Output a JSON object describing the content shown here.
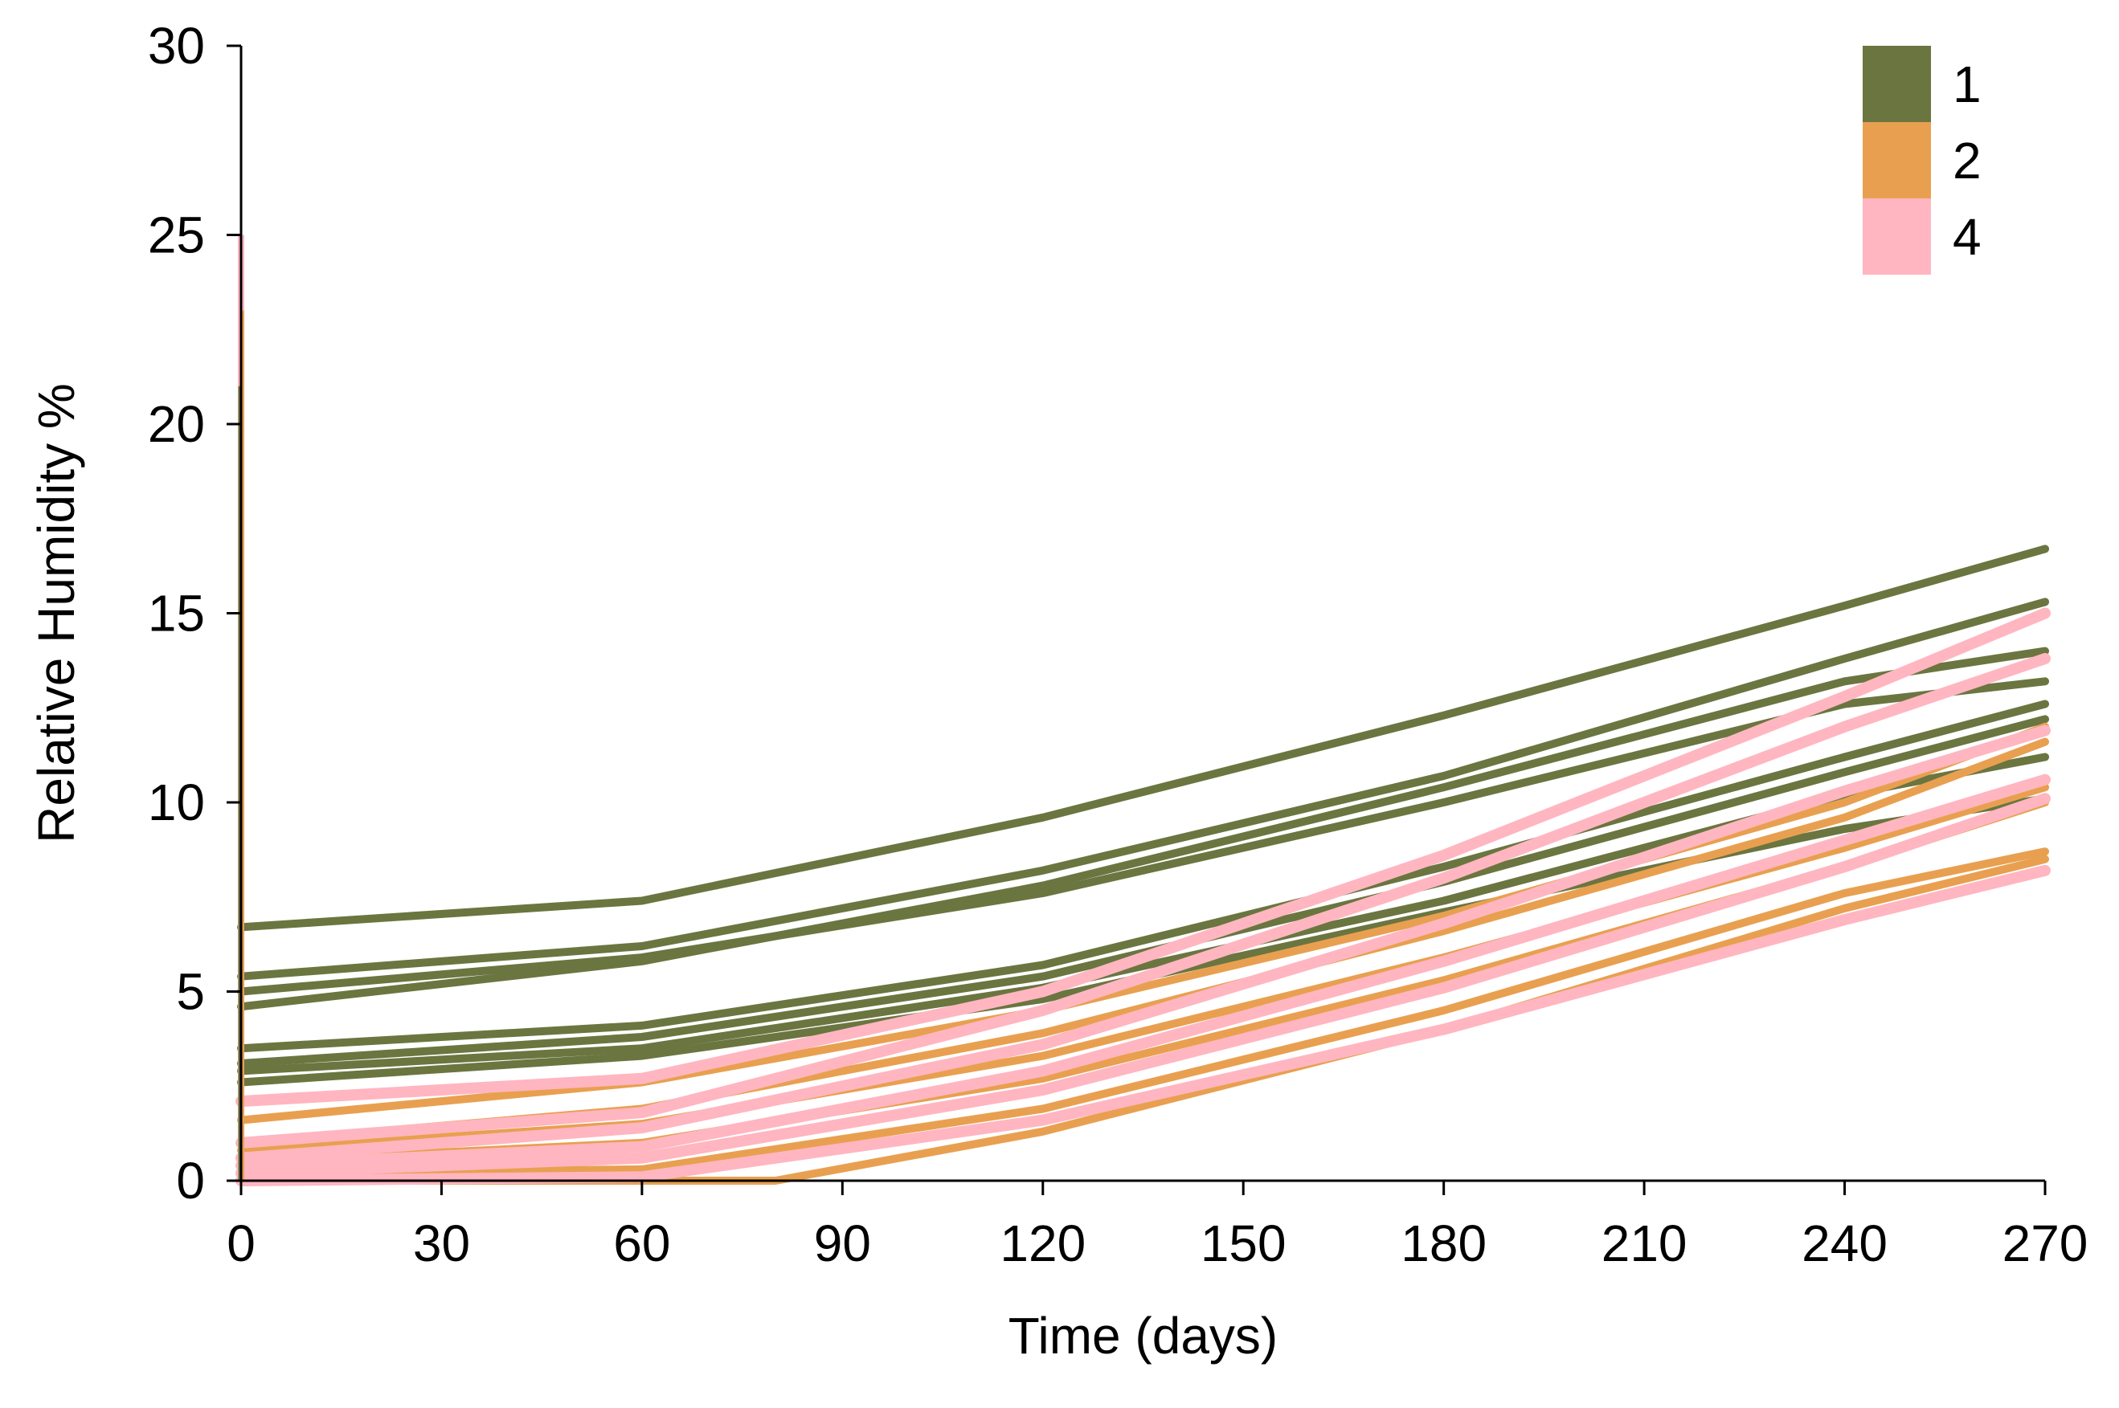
{
  "chart_data": {
    "type": "line",
    "title": "",
    "xlabel": "Time (days)",
    "ylabel": "Relative Humidity %",
    "xlim": [
      0,
      270
    ],
    "ylim": [
      0,
      30
    ],
    "xticks": [
      0,
      30,
      60,
      90,
      120,
      150,
      180,
      210,
      240,
      270
    ],
    "yticks": [
      0,
      5,
      10,
      15,
      20,
      25,
      30
    ],
    "grid": false,
    "legend_position": "top-right",
    "legend": [
      {
        "label": "1",
        "color": "#6b7540"
      },
      {
        "label": "2",
        "color": "#e8a050"
      },
      {
        "label": "4",
        "color": "#ffb6c1"
      }
    ],
    "series": [
      {
        "group": "1",
        "color": "#6b7540",
        "x": [
          0,
          60,
          120,
          180,
          240,
          270
        ],
        "y": [
          6.7,
          7.4,
          9.6,
          12.3,
          15.2,
          16.7
        ]
      },
      {
        "group": "1",
        "color": "#6b7540",
        "x": [
          0,
          60,
          120,
          180,
          240,
          270
        ],
        "y": [
          5.4,
          6.2,
          8.2,
          10.7,
          13.8,
          15.3
        ]
      },
      {
        "group": "1",
        "color": "#6b7540",
        "x": [
          0,
          60,
          120,
          180,
          240,
          270
        ],
        "y": [
          4.6,
          5.8,
          7.8,
          10.4,
          13.2,
          14.0
        ]
      },
      {
        "group": "1",
        "color": "#6b7540",
        "x": [
          0,
          60,
          120,
          180,
          240,
          270
        ],
        "y": [
          5.0,
          5.9,
          7.6,
          10.0,
          12.6,
          13.2
        ]
      },
      {
        "group": "1",
        "color": "#6b7540",
        "x": [
          0,
          60,
          120,
          180,
          240,
          270
        ],
        "y": [
          3.5,
          4.1,
          5.7,
          8.3,
          11.2,
          12.6
        ]
      },
      {
        "group": "1",
        "color": "#6b7540",
        "x": [
          0,
          60,
          120,
          180,
          240,
          270
        ],
        "y": [
          3.1,
          3.8,
          5.4,
          7.9,
          10.8,
          12.2
        ]
      },
      {
        "group": "1",
        "color": "#6b7540",
        "x": [
          0,
          60,
          120,
          180,
          240,
          270
        ],
        "y": [
          2.9,
          3.5,
          5.1,
          7.4,
          10.2,
          11.2
        ]
      },
      {
        "group": "1",
        "color": "#6b7540",
        "x": [
          0,
          60,
          120,
          180,
          240,
          270
        ],
        "y": [
          2.6,
          3.3,
          4.8,
          7.1,
          9.3,
          10.1
        ]
      },
      {
        "group": "2",
        "color": "#e8a050",
        "x": [
          0,
          60,
          120,
          180,
          240,
          270
        ],
        "y": [
          1.6,
          2.6,
          4.5,
          7.0,
          10.0,
          12.0
        ]
      },
      {
        "group": "2",
        "color": "#e8a050",
        "x": [
          0,
          60,
          120,
          180,
          240,
          270
        ],
        "y": [
          1.0,
          1.9,
          3.9,
          6.6,
          9.6,
          11.6
        ]
      },
      {
        "group": "2",
        "color": "#e8a050",
        "x": [
          0,
          60,
          120,
          180,
          240,
          270
        ],
        "y": [
          0.8,
          1.5,
          3.3,
          5.9,
          8.8,
          10.4
        ]
      },
      {
        "group": "2",
        "color": "#e8a050",
        "x": [
          0,
          60,
          120,
          180,
          240,
          270
        ],
        "y": [
          0.5,
          1.0,
          2.7,
          5.3,
          8.3,
          10.0
        ]
      },
      {
        "group": "2",
        "color": "#e8a050",
        "x": [
          0,
          60,
          120,
          180,
          240,
          270
        ],
        "y": [
          0.2,
          0.3,
          1.9,
          4.5,
          7.6,
          8.7
        ]
      },
      {
        "group": "2",
        "color": "#e8a050",
        "x": [
          0,
          60,
          80,
          120,
          180,
          240,
          270
        ],
        "y": [
          0.0,
          0.0,
          0.0,
          1.3,
          4.0,
          7.2,
          8.5
        ]
      },
      {
        "group": "4",
        "color": "#ffb6c1",
        "x": [
          0,
          60,
          120,
          180,
          240,
          270
        ],
        "y": [
          2.1,
          2.7,
          5.0,
          8.6,
          12.8,
          15.0
        ]
      },
      {
        "group": "4",
        "color": "#ffb6c1",
        "x": [
          0,
          60,
          120,
          180,
          240,
          270
        ],
        "y": [
          1.0,
          1.8,
          4.5,
          8.0,
          12.0,
          13.8
        ]
      },
      {
        "group": "4",
        "color": "#ffb6c1",
        "x": [
          0,
          60,
          120,
          180,
          240,
          270
        ],
        "y": [
          0.6,
          1.4,
          3.6,
          6.8,
          10.3,
          11.9
        ]
      },
      {
        "group": "4",
        "color": "#ffb6c1",
        "x": [
          0,
          60,
          120,
          180,
          240,
          270
        ],
        "y": [
          0.4,
          0.9,
          2.9,
          5.8,
          9.0,
          10.6
        ]
      },
      {
        "group": "4",
        "color": "#ffb6c1",
        "x": [
          0,
          60,
          120,
          180,
          240,
          270
        ],
        "y": [
          0.2,
          0.6,
          2.4,
          5.1,
          8.3,
          10.1
        ]
      },
      {
        "group": "4",
        "color": "#ffb6c1",
        "x": [
          0,
          60,
          120,
          180,
          240,
          270
        ],
        "y": [
          0.0,
          0.1,
          1.6,
          4.0,
          6.9,
          8.2
        ]
      }
    ],
    "startup_spike": {
      "x": 0,
      "y_max": 25
    }
  }
}
